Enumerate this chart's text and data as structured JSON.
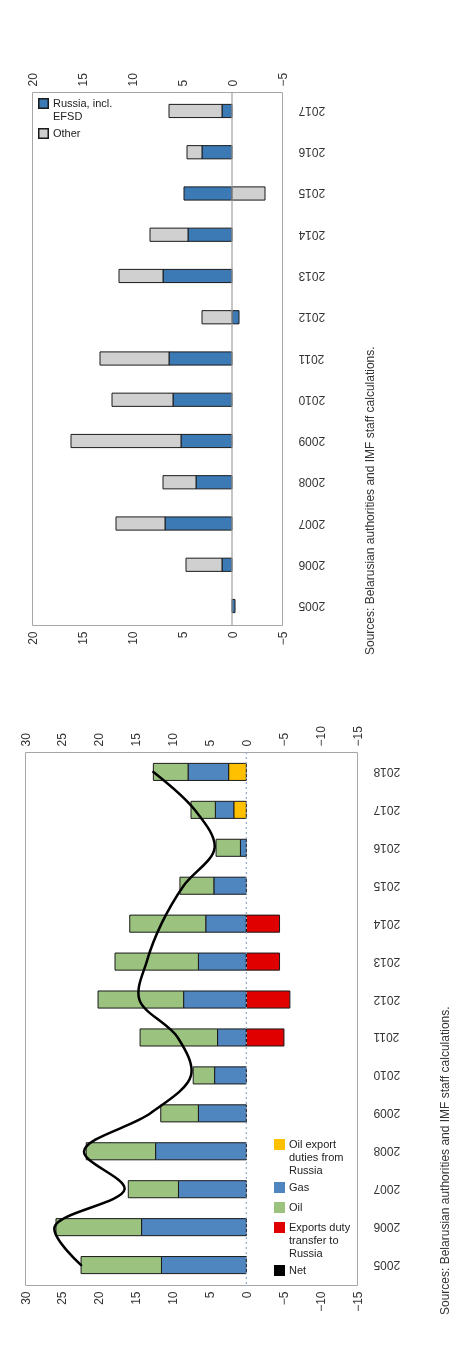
{
  "chart_data": [
    {
      "type": "bar",
      "stacked": true,
      "orientation": "horizontal",
      "categories": [
        "2018",
        "2017",
        "2016",
        "2015",
        "2014",
        "2013",
        "2012",
        "2011",
        "2010",
        "2009",
        "2008",
        "2007",
        "2006",
        "2005"
      ],
      "series": [
        {
          "name": "Oil export duties from Russia",
          "color": "#ffc000",
          "values": [
            2.4,
            1.7,
            null,
            null,
            null,
            null,
            null,
            null,
            null,
            null,
            null,
            null,
            null,
            null
          ]
        },
        {
          "name": "Gas",
          "color": "#4f86c0",
          "values": [
            5.5,
            2.5,
            0.8,
            4.4,
            5.5,
            6.5,
            8.5,
            3.9,
            4.3,
            6.5,
            12.3,
            9.2,
            14.2,
            11.5
          ]
        },
        {
          "name": "Oil",
          "color": "#9bc27f",
          "values": [
            4.7,
            3.3,
            3.3,
            4.6,
            10.3,
            11.3,
            11.6,
            10.5,
            2.9,
            5.1,
            9.4,
            6.8,
            11.6,
            10.9
          ]
        },
        {
          "name": "Exports duty transfer to Russia",
          "color": "#e00000",
          "values": [
            null,
            null,
            null,
            null,
            -4.5,
            -4.5,
            -5.9,
            -5.1,
            null,
            null,
            null,
            null,
            null,
            null
          ]
        },
        {
          "name": "Net",
          "type": "line",
          "color": "#000000",
          "values": [
            12.6,
            7.0,
            4.3,
            8.5,
            11.5,
            13.5,
            14.5,
            9.3,
            7.5,
            13.0,
            22.0,
            16.5,
            26.0,
            22.4
          ]
        }
      ],
      "xlim": [
        30,
        -15
      ],
      "xticks": [
        30,
        25,
        20,
        15,
        10,
        5,
        0,
        -5,
        -10,
        -15
      ],
      "x2lim": [
        30,
        -15
      ],
      "x2ticks": [
        30,
        25,
        20,
        15,
        10,
        5,
        0,
        -5,
        -10,
        -15
      ],
      "grid": false,
      "legend": "bottom right",
      "ref_lines": [
        {
          "axis": "x",
          "value": 0,
          "color": "#8fa8c8",
          "line_style": "dotted"
        }
      ],
      "annotations": [
        "Sources: Belarusian authorities and IMF staff calculations."
      ]
    },
    {
      "type": "bar",
      "stacked": true,
      "orientation": "horizontal",
      "categories": [
        "2017",
        "2016",
        "2015",
        "2014",
        "2013",
        "2012",
        "2011",
        "2010",
        "2009",
        "2008",
        "2007",
        "2006",
        "2005"
      ],
      "series": [
        {
          "name": "Russia, incl. EFSD",
          "color": "#3b7ab5",
          "values": [
            1.0,
            3.0,
            4.8,
            4.4,
            6.9,
            -0.7,
            6.3,
            5.9,
            5.1,
            3.6,
            6.7,
            1.0,
            -0.3
          ]
        },
        {
          "name": "Other",
          "color": "#d0d0d0",
          "values": [
            5.3,
            1.5,
            -3.3,
            3.8,
            4.4,
            3.0,
            6.9,
            6.1,
            11.0,
            3.3,
            4.9,
            3.6,
            null
          ]
        }
      ],
      "xlim": [
        20,
        -5
      ],
      "xticks": [
        20,
        15,
        10,
        5,
        0,
        -5
      ],
      "x2lim": [
        20,
        -5
      ],
      "x2ticks": [
        20,
        15,
        10,
        5,
        0,
        -5
      ],
      "grid": false,
      "legend": "top left",
      "ref_lines": [
        {
          "axis": "x",
          "value": 0,
          "color": "#a0a0a0"
        }
      ],
      "annotations": [
        "Sources: Belarusian authorities and IMF staff calculations."
      ]
    }
  ]
}
